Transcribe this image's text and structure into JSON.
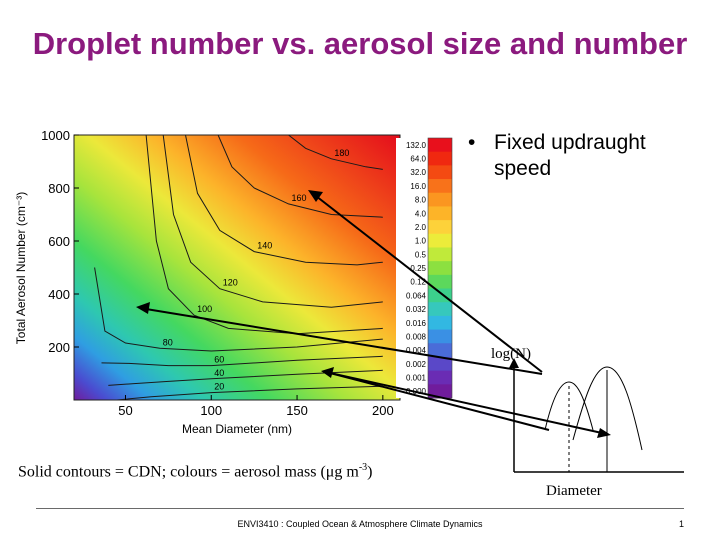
{
  "slide": {
    "title": "Droplet number vs. aerosol size and number",
    "bullet": "Fixed updraught speed",
    "caption_main": "Solid contours = CDN; colours = aerosol mass (",
    "caption_mu": "μ",
    "caption_unit": "g m",
    "caption_exp": "-3",
    "caption_close": ")",
    "footer": "ENVI3410 : Coupled Ocean & Atmosphere Climate Dynamics",
    "page_number": "1"
  },
  "chart_data": [
    {
      "type": "heatmap",
      "xlabel": "Mean Diameter (nm)",
      "ylabel": "Total Aerosol Number (cm⁻³)",
      "xlim": [
        20,
        210
      ],
      "ylim": [
        0,
        1000
      ],
      "x_ticks": [
        "50",
        "100",
        "150",
        "200"
      ],
      "x_tick_values": [
        50,
        100,
        150,
        200
      ],
      "y_ticks": [
        "200",
        "400",
        "600",
        "800",
        "1000"
      ],
      "y_tick_values": [
        200,
        400,
        600,
        800,
        1000
      ],
      "colorbar_labels": [
        "132.0",
        "64.0",
        "32.0",
        "16.0",
        "8.0",
        "4.0",
        "2.0",
        "1.0",
        "0.5",
        "0.25",
        "0.12",
        "0.064",
        "0.032",
        "0.016",
        "0.008",
        "0.004",
        "0.002",
        "0.001",
        "0.000"
      ],
      "colorbar_colors": [
        "#e8101c",
        "#f02810",
        "#f44a12",
        "#f8721a",
        "#fb9620",
        "#fdb428",
        "#fdd23a",
        "#ecec3a",
        "#c0ea3a",
        "#8ce040",
        "#5cd85c",
        "#3cd08c",
        "#36c8bc",
        "#32b8e2",
        "#3a90e4",
        "#4a6cd8",
        "#5a48c8",
        "#6a2cb4",
        "#701c9c"
      ],
      "contours": [
        {
          "label": "20",
          "value": 20,
          "points": [
            [
              45,
              0
            ],
            [
              65,
              12
            ],
            [
              100,
              28
            ],
            [
              150,
              42
            ],
            [
              200,
              52
            ]
          ]
        },
        {
          "label": "40",
          "value": 40,
          "points": [
            [
              40,
              55
            ],
            [
              55,
              62
            ],
            [
              75,
              70
            ],
            [
              100,
              80
            ],
            [
              150,
              97
            ],
            [
              200,
              112
            ]
          ]
        },
        {
          "label": "60",
          "value": 60,
          "points": [
            [
              36,
              140
            ],
            [
              52,
              138
            ],
            [
              75,
              130
            ],
            [
              100,
              130
            ],
            [
              150,
              150
            ],
            [
              200,
              165
            ]
          ]
        },
        {
          "label": "80",
          "value": 80,
          "points": [
            [
              32,
              500
            ],
            [
              38,
              260
            ],
            [
              50,
              215
            ],
            [
              70,
              195
            ],
            [
              100,
              185
            ],
            [
              150,
              200
            ],
            [
              200,
              230
            ]
          ]
        },
        {
          "label": "100",
          "value": 100,
          "points": [
            [
              62,
              1000
            ],
            [
              68,
              600
            ],
            [
              75,
              420
            ],
            [
              90,
              320
            ],
            [
              110,
              270
            ],
            [
              150,
              250
            ],
            [
              200,
              270
            ]
          ]
        },
        {
          "label": "120",
          "value": 120,
          "points": [
            [
              72,
              1000
            ],
            [
              78,
              700
            ],
            [
              88,
              520
            ],
            [
              105,
              420
            ],
            [
              130,
              370
            ],
            [
              170,
              350
            ],
            [
              200,
              370
            ]
          ]
        },
        {
          "label": "140",
          "value": 140,
          "points": [
            [
              85,
              1000
            ],
            [
              92,
              780
            ],
            [
              105,
              640
            ],
            [
              125,
              560
            ],
            [
              155,
              520
            ],
            [
              185,
              510
            ],
            [
              200,
              520
            ]
          ]
        },
        {
          "label": "160",
          "value": 160,
          "points": [
            [
              104,
              1000
            ],
            [
              112,
              880
            ],
            [
              125,
              800
            ],
            [
              145,
              740
            ],
            [
              170,
              700
            ],
            [
              200,
              690
            ]
          ]
        },
        {
          "label": "180",
          "value": 180,
          "points": [
            [
              145,
              1000
            ],
            [
              155,
              950
            ],
            [
              170,
              910
            ],
            [
              190,
              880
            ],
            [
              200,
              870
            ]
          ]
        }
      ]
    },
    {
      "type": "line",
      "xlabel": "Diameter",
      "ylabel": "log(N)",
      "series": [
        {
          "values": []
        },
        {
          "values": []
        }
      ]
    }
  ]
}
